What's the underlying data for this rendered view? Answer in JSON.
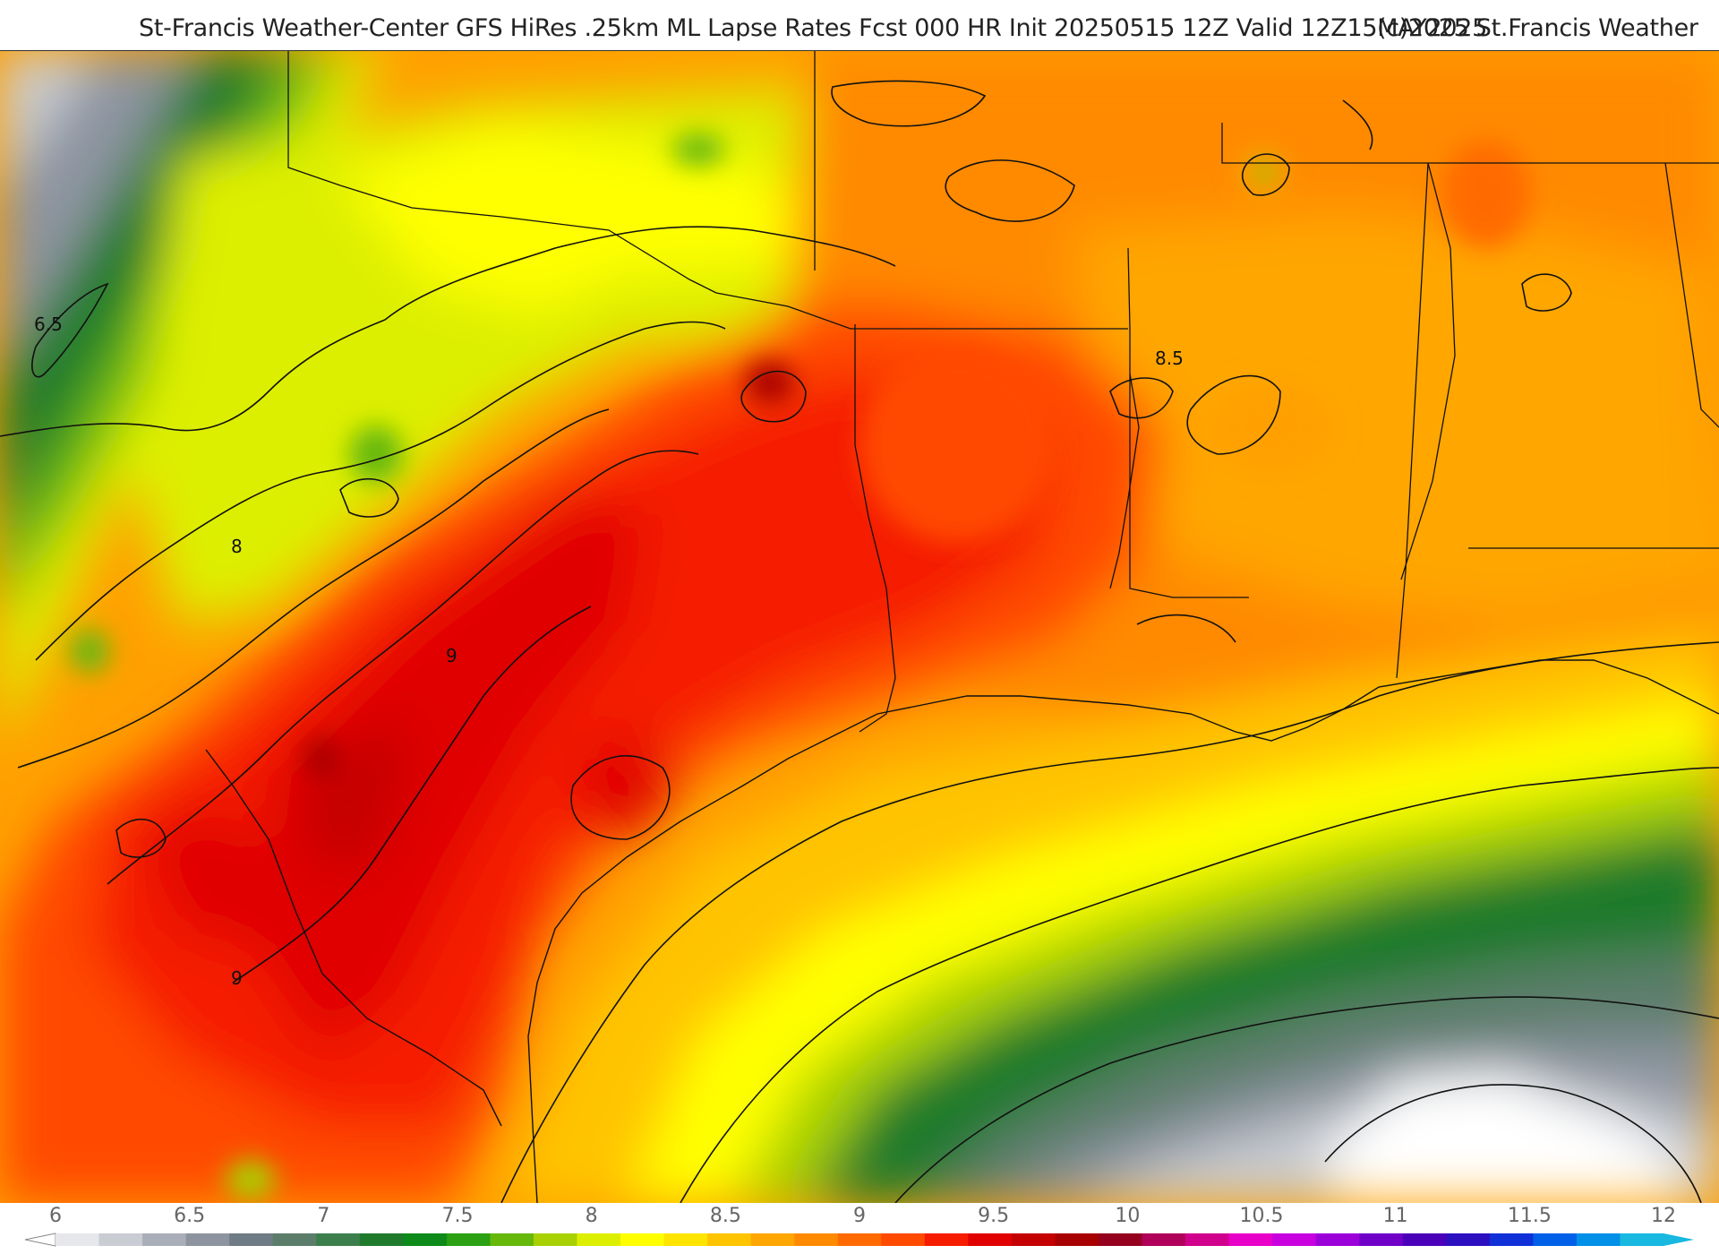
{
  "header": {
    "title": "St-Francis Weather-Center GFS HiRes .25km ML Lapse Rates  Fcst 000 HR Init 20250515 12Z  Valid 12Z15MAY2025",
    "copyright": "(c)2025 St.Francis Weather"
  },
  "map": {
    "contour_labels": [
      "6.5",
      "8",
      "9",
      "9",
      "8.5"
    ]
  },
  "colorbar": {
    "ticks": [
      "6",
      "6.5",
      "7",
      "7.5",
      "8",
      "8.5",
      "9",
      "9.5",
      "10",
      "10.5",
      "11",
      "11.5",
      "12"
    ],
    "colors": [
      "#e6e7ea",
      "#c9ccd2",
      "#a9aeb8",
      "#8d94a0",
      "#6f7c85",
      "#5b7d6a",
      "#3d7f4c",
      "#1f7a2b",
      "#0d8a1a",
      "#2aa012",
      "#66b80a",
      "#a8d104",
      "#ddef00",
      "#ffff00",
      "#ffe400",
      "#ffc400",
      "#ffa600",
      "#ff8a00",
      "#ff6a00",
      "#ff4a00",
      "#f51c00",
      "#e00000",
      "#c40000",
      "#a80000",
      "#95001e",
      "#b0005a",
      "#d0008c",
      "#e800c8",
      "#c800e0",
      "#9c00d8",
      "#7000c8",
      "#4a00b8",
      "#2c10c0",
      "#1030d8",
      "#0060e8",
      "#0090e8",
      "#18b8e0"
    ]
  }
}
